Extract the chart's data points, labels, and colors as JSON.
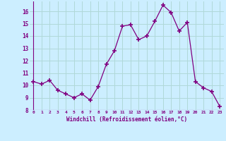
{
  "x": [
    0,
    1,
    2,
    3,
    4,
    5,
    6,
    7,
    8,
    9,
    10,
    11,
    12,
    13,
    14,
    15,
    16,
    17,
    18,
    19,
    20,
    21,
    22,
    23
  ],
  "y": [
    10.3,
    10.1,
    10.4,
    9.6,
    9.3,
    9.0,
    9.3,
    8.8,
    9.9,
    11.7,
    12.8,
    14.8,
    14.9,
    13.7,
    14.0,
    15.2,
    16.5,
    15.9,
    14.4,
    15.1,
    10.3,
    9.8,
    9.5,
    8.3
  ],
  "line_color": "#800080",
  "marker": "+",
  "marker_size": 4,
  "bg_color": "#cceeff",
  "grid_color": "#b0d8d8",
  "xlabel": "Windchill (Refroidissement éolien,°C)",
  "tick_color": "#800080",
  "xlim": [
    -0.5,
    23.5
  ],
  "ylim": [
    8,
    16.8
  ],
  "xtick_labels": [
    "0",
    "1",
    "2",
    "3",
    "4",
    "5",
    "6",
    "7",
    "8",
    "9",
    "10",
    "11",
    "12",
    "13",
    "14",
    "15",
    "16",
    "17",
    "18",
    "19",
    "20",
    "21",
    "22",
    "23"
  ],
  "ytick_vals": [
    8,
    9,
    10,
    11,
    12,
    13,
    14,
    15,
    16
  ],
  "ytick_labels": [
    "8",
    "9",
    "10",
    "11",
    "12",
    "13",
    "14",
    "15",
    "16"
  ]
}
